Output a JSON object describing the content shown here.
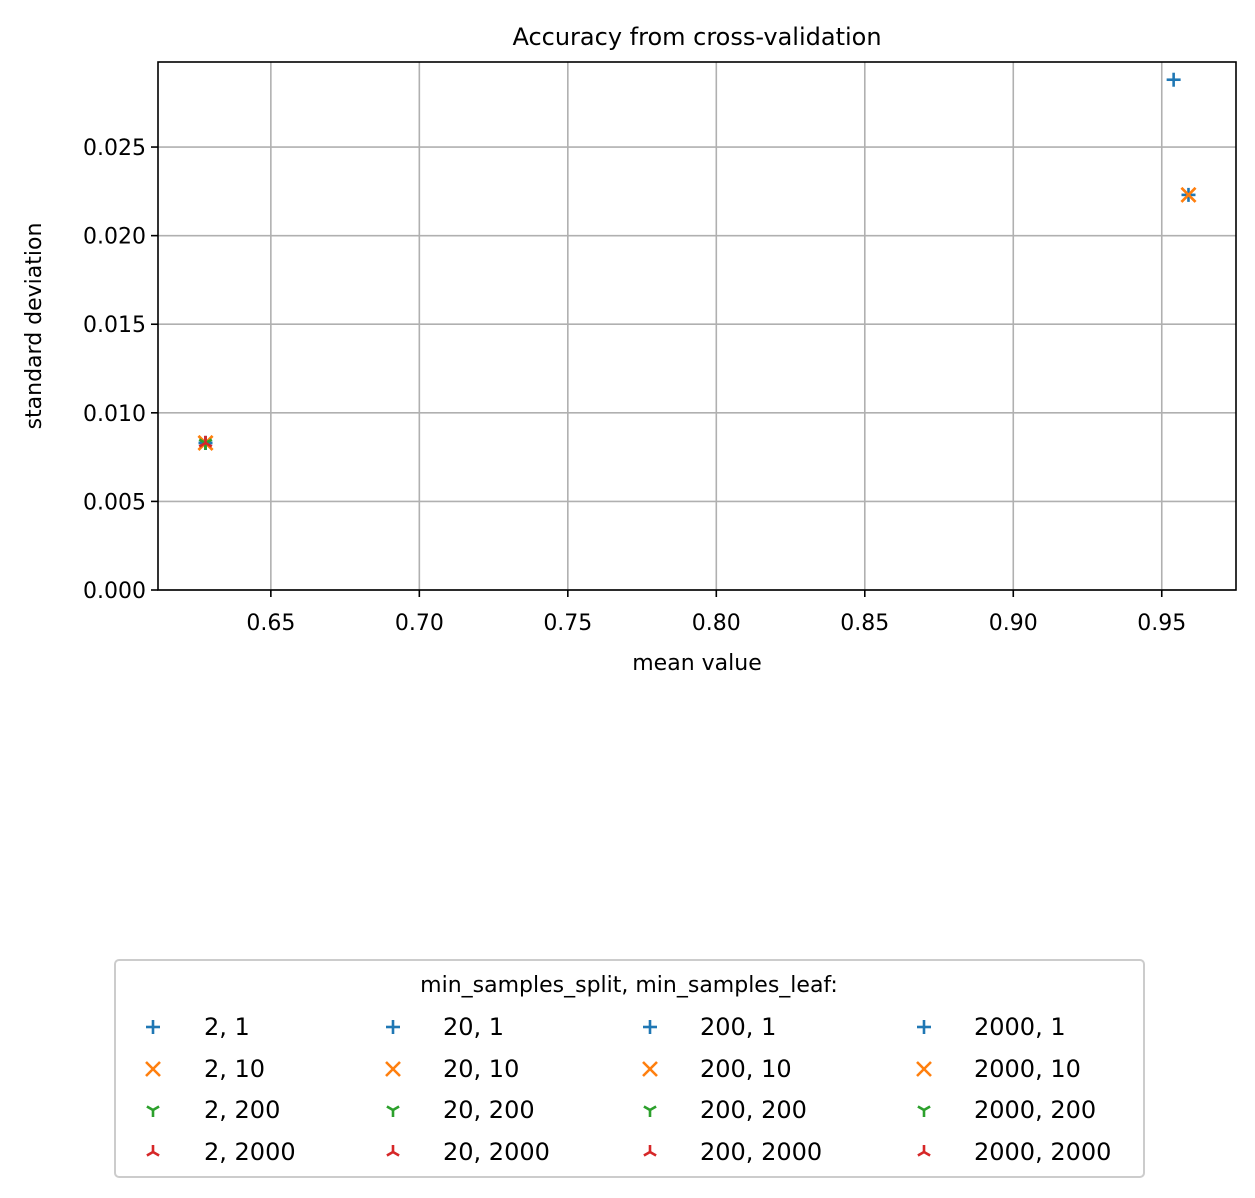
{
  "chart_data": {
    "type": "scatter",
    "title": "Accuracy from cross-validation",
    "xlabel": "mean value",
    "ylabel": "standard deviation",
    "xlim": [
      0.612,
      0.975
    ],
    "ylim": [
      0.0,
      0.0298
    ],
    "xticks": [
      "0.65",
      "0.70",
      "0.75",
      "0.80",
      "0.85",
      "0.90",
      "0.95"
    ],
    "yticks": [
      "0.000",
      "0.005",
      "0.010",
      "0.015",
      "0.020",
      "0.025"
    ],
    "grid": true,
    "legend": {
      "title": "min_samples_split, min_samples_leaf:",
      "placement": "below",
      "columns": 4
    },
    "series": [
      {
        "name": "2, 1",
        "marker": "plus",
        "color": "#1f77b4",
        "points": [
          {
            "x": 0.954,
            "y": 0.0288
          }
        ]
      },
      {
        "name": "2, 10",
        "marker": "x",
        "color": "#ff7f0e",
        "points": [
          {
            "x": 0.959,
            "y": 0.0223
          }
        ]
      },
      {
        "name": "2, 200",
        "marker": "tri_down",
        "color": "#2ca02c",
        "points": [
          {
            "x": 0.628,
            "y": 0.0083
          }
        ]
      },
      {
        "name": "2, 2000",
        "marker": "tri_up",
        "color": "#d62728",
        "points": [
          {
            "x": 0.628,
            "y": 0.0083
          }
        ]
      },
      {
        "name": "20, 1",
        "marker": "plus",
        "color": "#1f77b4",
        "points": [
          {
            "x": 0.959,
            "y": 0.0223
          }
        ]
      },
      {
        "name": "20, 10",
        "marker": "x",
        "color": "#ff7f0e",
        "points": [
          {
            "x": 0.959,
            "y": 0.0223
          }
        ]
      },
      {
        "name": "20, 200",
        "marker": "tri_down",
        "color": "#2ca02c",
        "points": [
          {
            "x": 0.628,
            "y": 0.0083
          }
        ]
      },
      {
        "name": "20, 2000",
        "marker": "tri_up",
        "color": "#d62728",
        "points": [
          {
            "x": 0.628,
            "y": 0.0083
          }
        ]
      },
      {
        "name": "200, 1",
        "marker": "plus",
        "color": "#1f77b4",
        "points": [
          {
            "x": 0.628,
            "y": 0.0083
          }
        ]
      },
      {
        "name": "200, 10",
        "marker": "x",
        "color": "#ff7f0e",
        "points": [
          {
            "x": 0.628,
            "y": 0.0083
          }
        ]
      },
      {
        "name": "200, 200",
        "marker": "tri_down",
        "color": "#2ca02c",
        "points": [
          {
            "x": 0.628,
            "y": 0.0083
          }
        ]
      },
      {
        "name": "200, 2000",
        "marker": "tri_up",
        "color": "#d62728",
        "points": [
          {
            "x": 0.628,
            "y": 0.0083
          }
        ]
      },
      {
        "name": "2000, 1",
        "marker": "plus",
        "color": "#1f77b4",
        "points": [
          {
            "x": 0.628,
            "y": 0.0083
          }
        ]
      },
      {
        "name": "2000, 10",
        "marker": "x",
        "color": "#ff7f0e",
        "points": [
          {
            "x": 0.628,
            "y": 0.0083
          }
        ]
      },
      {
        "name": "2000, 200",
        "marker": "tri_down",
        "color": "#2ca02c",
        "points": [
          {
            "x": 0.628,
            "y": 0.0083
          }
        ]
      },
      {
        "name": "2000, 2000",
        "marker": "tri_up",
        "color": "#d62728",
        "points": [
          {
            "x": 0.628,
            "y": 0.0083
          }
        ]
      }
    ]
  }
}
